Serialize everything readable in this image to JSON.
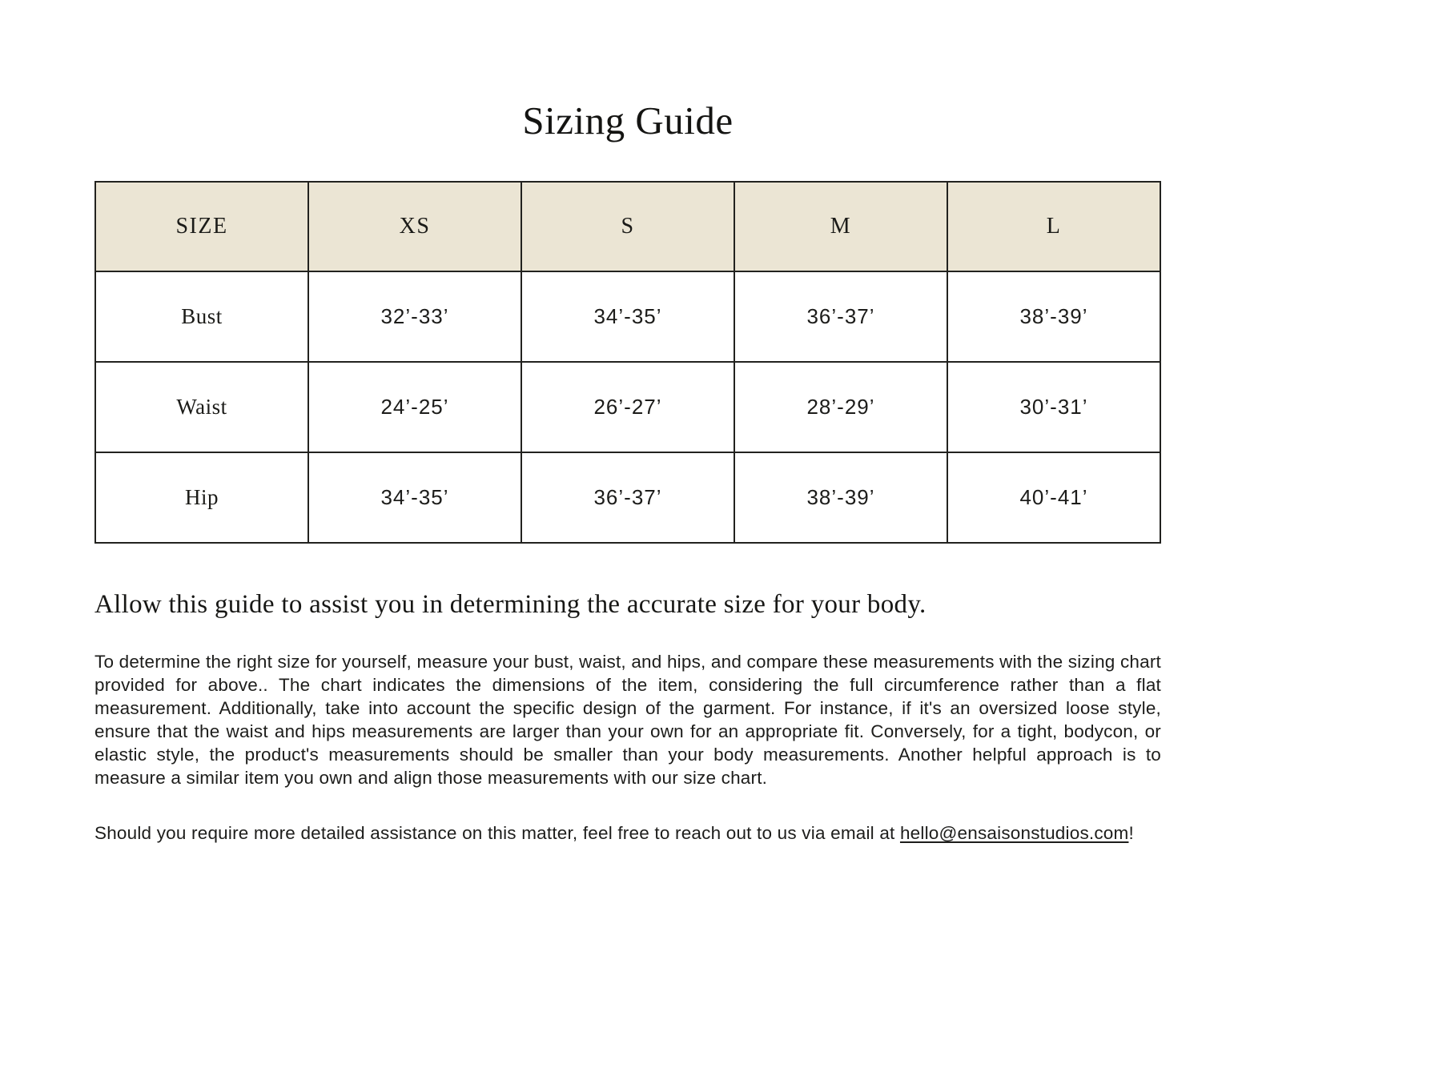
{
  "page": {
    "title": "Sizing Guide",
    "background_color": "#FFFFFF"
  },
  "table": {
    "header_bg_color": "#EBE5D4",
    "border_color": "#22221F",
    "columns": [
      "SIZE",
      "XS",
      "S",
      "M",
      "L"
    ],
    "rows": [
      {
        "label": "Bust",
        "values": [
          "32’-33’",
          "34’-35’",
          "36’-37’",
          "38’-39’"
        ]
      },
      {
        "label": "Waist",
        "values": [
          "24’-25’",
          "26’-27’",
          "28’-29’",
          "30’-31’"
        ]
      },
      {
        "label": "Hip",
        "values": [
          "34’-35’",
          "36’-37’",
          "38’-39’",
          "40’-41’"
        ]
      }
    ]
  },
  "content": {
    "lead": "Allow this guide to assist you in determining the accurate size for your body.",
    "paragraph": "To determine the right size for yourself, measure your bust, waist, and hips, and compare these measurements with the sizing chart provided for above.. The chart indicates the dimensions of the item, considering the full circumference rather than a flat measurement. Additionally, take into account the specific design of the garment. For instance, if it's an oversized loose style, ensure that the waist and hips measurements are larger than your own for an appropriate fit. Conversely, for a tight, bodycon, or elastic style, the product's measurements should be smaller than your body measurements. Another helpful approach is to measure a similar item you own and align those measurements with our size chart.",
    "contact_prefix": "Should you require more detailed assistance on this matter, feel free to reach out to us via email at ",
    "email": "hello@ensaisonstudios.com",
    "contact_suffix": "!"
  }
}
